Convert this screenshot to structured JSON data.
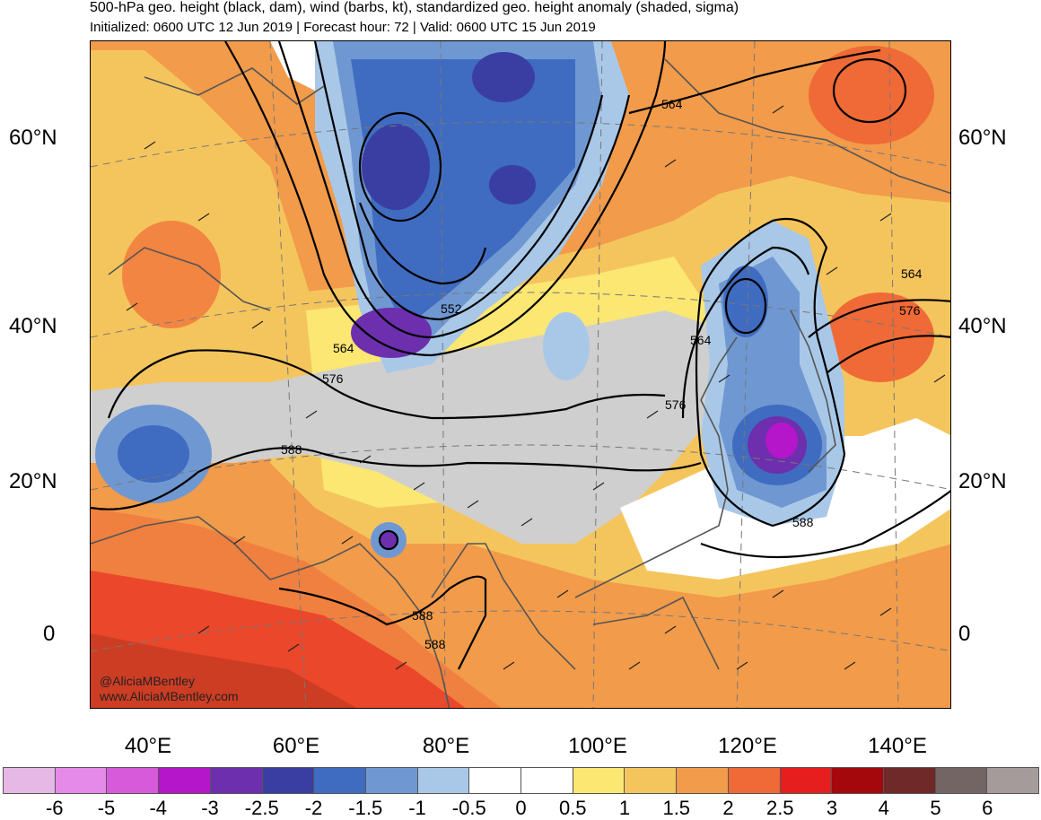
{
  "title": {
    "line1": "500-hPa geo. height (black, dam), wind (barbs, kt), standardized geo. height anomaly (shaded, sigma)",
    "line2": "Initialized: 0600 UTC 12 Jun 2019 | Forecast hour: 72 | Valid: 0600 UTC 15 Jun 2019"
  },
  "lat_labels": [
    "60°N",
    "40°N",
    "20°N",
    "0"
  ],
  "lon_labels": [
    "40°E",
    "60°E",
    "80°E",
    "100°E",
    "120°E",
    "140°E"
  ],
  "contour_labels": [
    "564",
    "552",
    "564",
    "576",
    "588",
    "564",
    "576",
    "588",
    "588",
    "588",
    "564",
    "576"
  ],
  "credits": {
    "line1": "@AliciaMBentley",
    "line2": "www.AliciaMBentley.com"
  },
  "colorbar": {
    "ticks": [
      "-6",
      "-5",
      "-4",
      "-3",
      "-2.5",
      "-2",
      "-1.5",
      "-1",
      "-0.5",
      "0",
      "0.5",
      "1",
      "1.5",
      "2",
      "2.5",
      "3",
      "4",
      "5",
      "6"
    ],
    "colors": [
      "#e6b8e6",
      "#e58ae8",
      "#d65ad9",
      "#b516c9",
      "#6d2fae",
      "#3a3ea3",
      "#3f6cc0",
      "#6f98d2",
      "#a9c8e8",
      "#ffffff",
      "#ffffff",
      "#fbe772",
      "#f5c55d",
      "#f29b4a",
      "#ef6a36",
      "#e61e1e",
      "#a4070c",
      "#6e2928",
      "#726563",
      "#a69b9b"
    ]
  }
}
